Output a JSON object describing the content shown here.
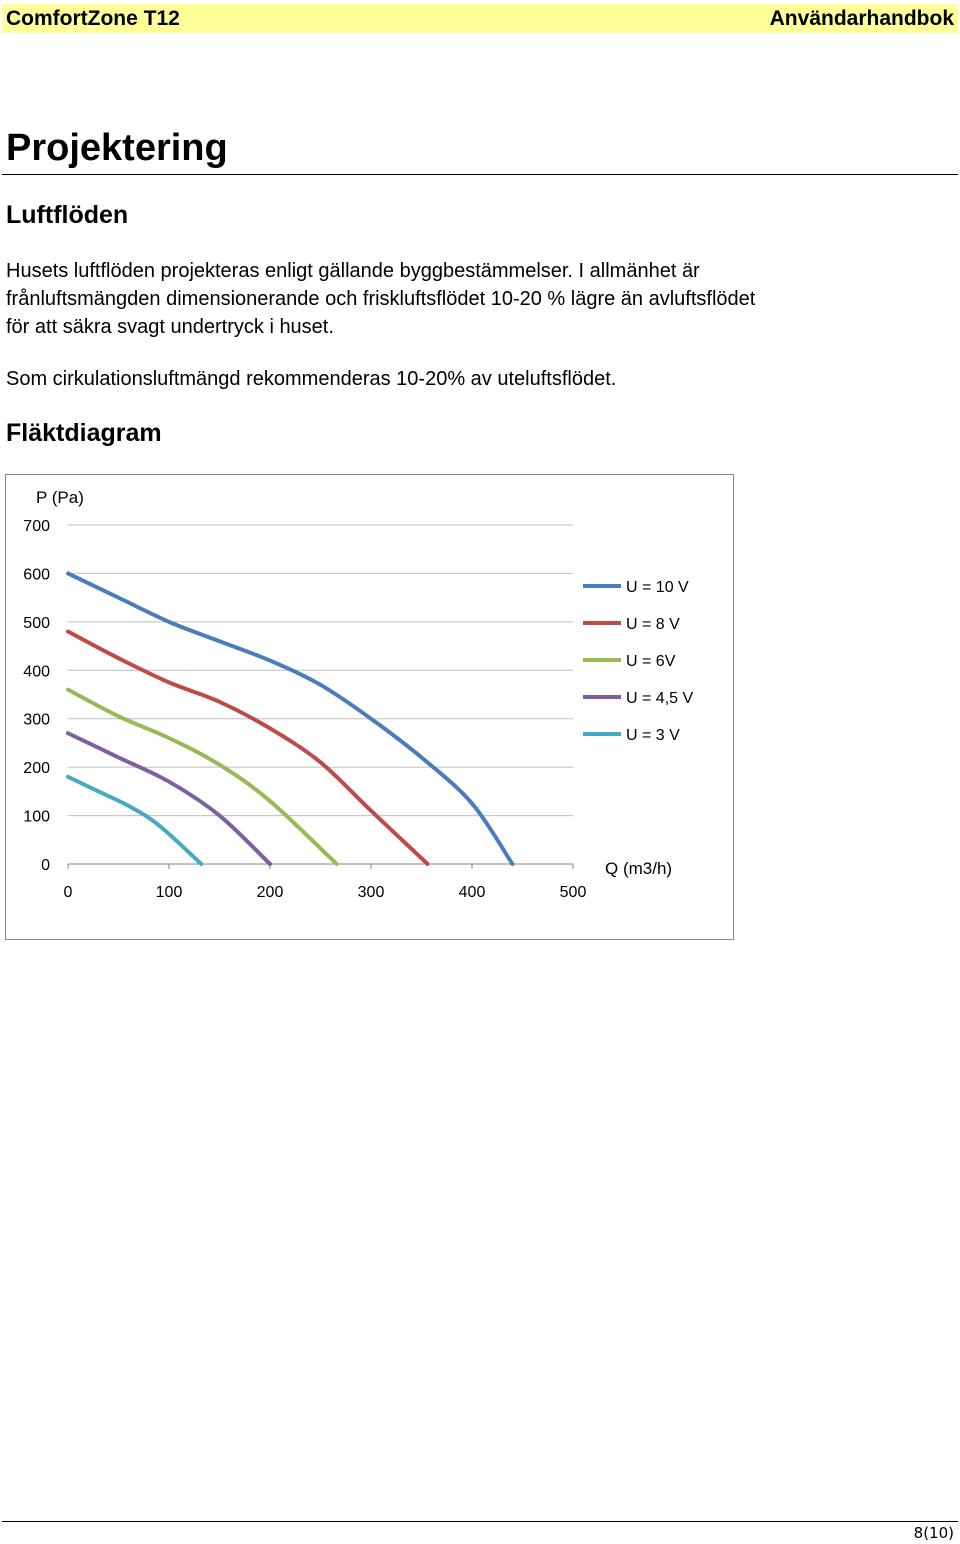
{
  "header": {
    "product": "ComfortZone T12",
    "manual": "Användarhandbok",
    "background_color": "#ffff99"
  },
  "page_title": "Projektering",
  "sections": {
    "airflow_heading": "Luftflöden",
    "paragraph_1_lines": [
      "Husets luftflöden projekteras enligt gällande byggbestämmelser. I allmänhet är",
      "frånluftsmängden dimensionerande och friskluftsflödet 10-20 % lägre än avluftsflödet",
      "för att säkra svagt undertryck i huset."
    ],
    "paragraph_2": "Som cirkulationsluftmängd rekommenderas 10-20% av uteluftsflödet.",
    "fan_diagram_heading": "Fläktdiagram"
  },
  "chart_data": {
    "type": "line",
    "ylabel": "P (Pa)",
    "xlabel": "Q (m3/h)",
    "xlim": [
      0,
      500
    ],
    "ylim": [
      0,
      700
    ],
    "x_ticks": [
      0,
      100,
      200,
      300,
      400,
      500
    ],
    "y_ticks": [
      0,
      100,
      200,
      300,
      400,
      500,
      600,
      700
    ],
    "grid": "horizontal",
    "legend_position": "right",
    "series": [
      {
        "name": "U = 10 V",
        "color": "#4a7ebb",
        "x": [
          0,
          50,
          100,
          150,
          200,
          250,
          300,
          350,
          400,
          440
        ],
        "y": [
          600,
          550,
          500,
          460,
          420,
          370,
          300,
          220,
          125,
          0
        ]
      },
      {
        "name": "U = 8 V",
        "color": "#be4b48",
        "x": [
          0,
          50,
          100,
          150,
          200,
          250,
          300,
          356
        ],
        "y": [
          480,
          425,
          375,
          335,
          280,
          210,
          110,
          0
        ]
      },
      {
        "name": "U = 6V",
        "color": "#98b954",
        "x": [
          0,
          50,
          100,
          150,
          200,
          266
        ],
        "y": [
          360,
          305,
          260,
          205,
          130,
          0
        ]
      },
      {
        "name": "U = 4,5 V",
        "color": "#7d60a0",
        "x": [
          0,
          50,
          100,
          150,
          200
        ],
        "y": [
          270,
          220,
          170,
          100,
          0
        ]
      },
      {
        "name": "U = 3 V",
        "color": "#46aac5",
        "x": [
          0,
          30,
          60,
          90,
          132
        ],
        "y": [
          180,
          150,
          120,
          80,
          0
        ]
      }
    ]
  },
  "footer": {
    "page_number": "8(10)"
  }
}
